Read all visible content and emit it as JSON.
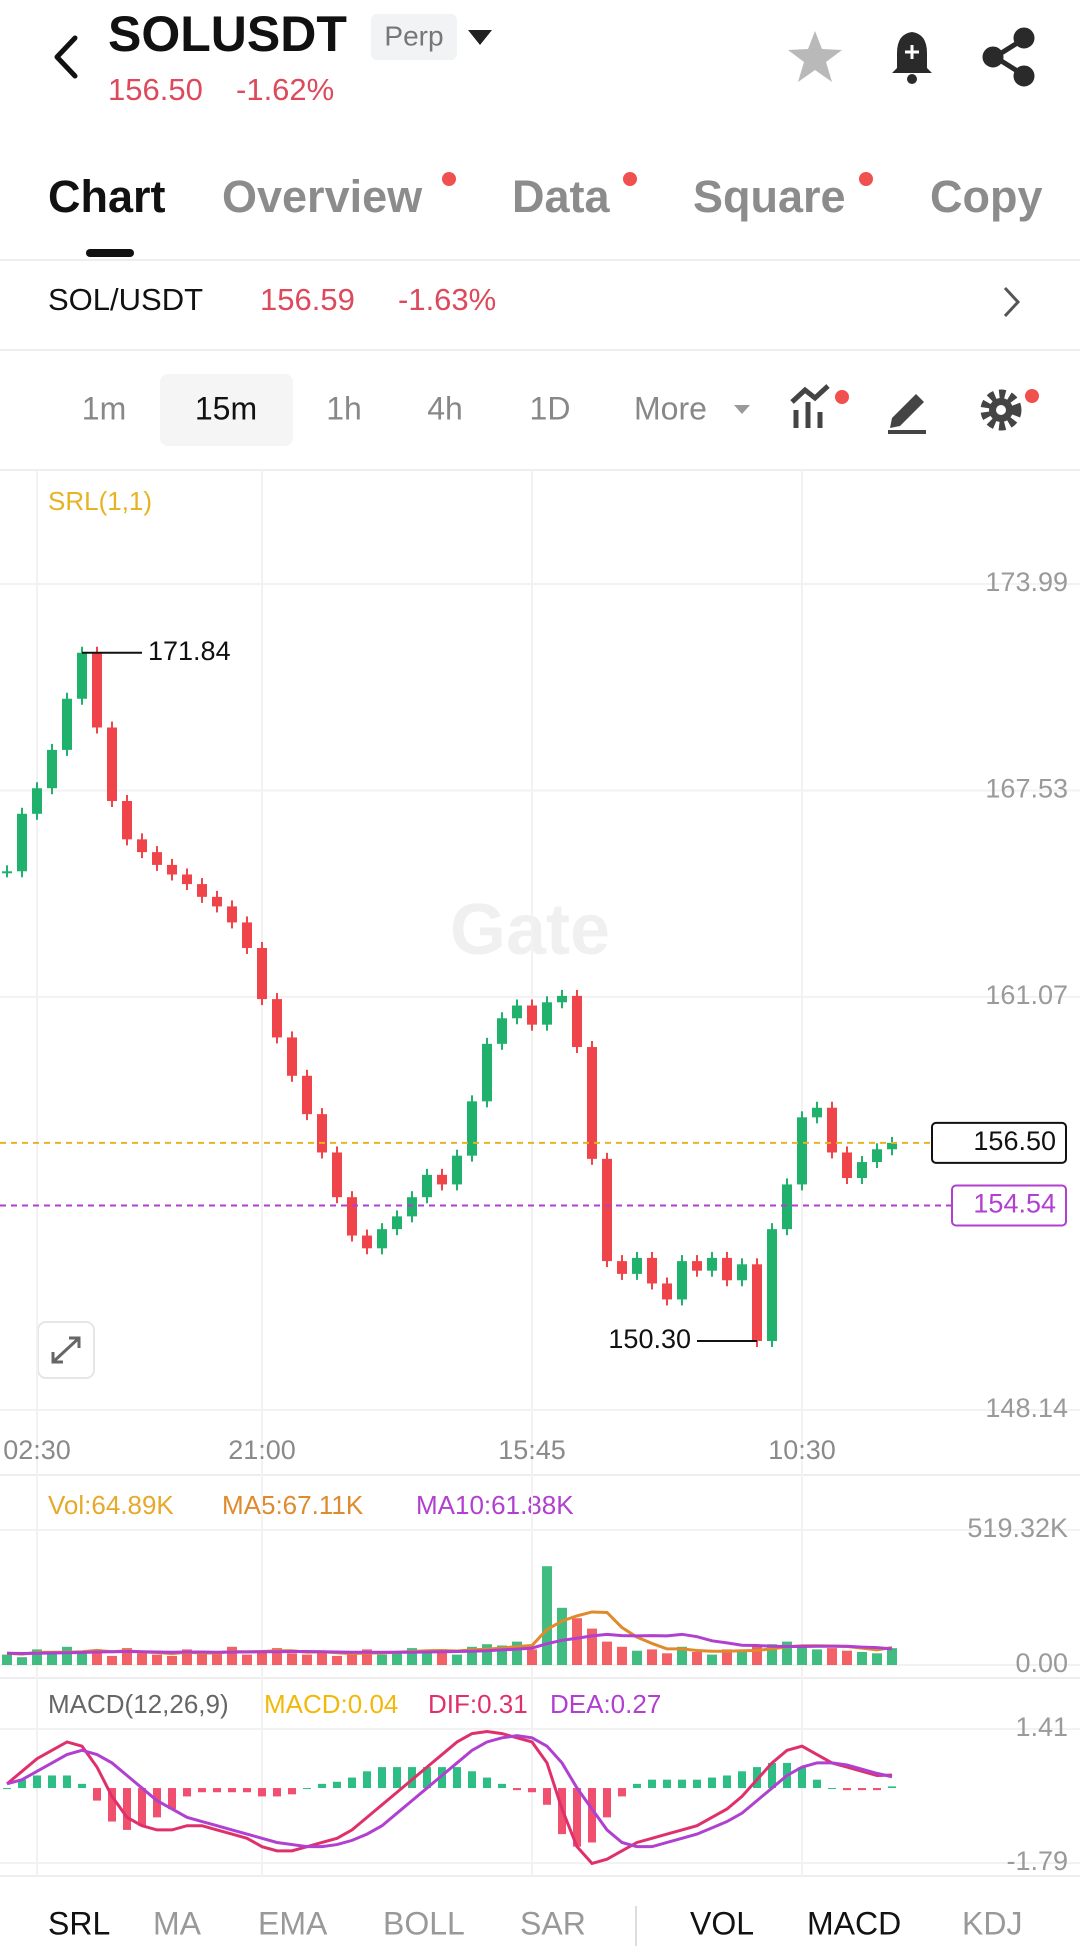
{
  "header": {
    "symbol": "SOLUSDT",
    "badge": "Perp",
    "price": "156.50",
    "change": "-1.62%"
  },
  "tabs": [
    "Chart",
    "Overview",
    "Data",
    "Square",
    "Copy"
  ],
  "pair": {
    "name": "SOL/USDT",
    "price": "156.59",
    "change": "-1.63%"
  },
  "intervals": [
    "1m",
    "15m",
    "1h",
    "4h",
    "1D",
    "More"
  ],
  "indicators": {
    "main": [
      "SRL",
      "MA",
      "EMA",
      "BOLL",
      "SAR"
    ],
    "sub": [
      "VOL",
      "MACD",
      "KDJ"
    ]
  },
  "chart_data": [
    {
      "type": "candlestick",
      "indicator": "SRL(1,1)",
      "watermark": "Gate",
      "categories": [
        null,
        null,
        "02:30",
        null,
        null,
        null,
        null,
        null,
        null,
        null,
        null,
        null,
        null,
        null,
        null,
        null,
        null,
        "21:00",
        null,
        null,
        null,
        null,
        null,
        null,
        null,
        null,
        null,
        null,
        null,
        null,
        null,
        null,
        null,
        null,
        null,
        "15:45",
        null,
        null,
        null,
        null,
        null,
        null,
        null,
        null,
        null,
        null,
        null,
        null,
        null,
        null,
        null,
        null,
        null,
        "10:30",
        null,
        null,
        null,
        null,
        null,
        null
      ],
      "closes": [
        165.0,
        166.8,
        167.6,
        168.8,
        170.4,
        171.84,
        169.5,
        167.2,
        166.0,
        165.6,
        165.2,
        164.9,
        164.6,
        164.2,
        163.9,
        163.4,
        162.6,
        161.0,
        159.8,
        158.6,
        157.4,
        156.2,
        154.8,
        153.6,
        153.2,
        153.8,
        154.2,
        154.8,
        155.5,
        155.2,
        156.1,
        157.8,
        159.6,
        160.4,
        160.8,
        160.2,
        160.9,
        161.1,
        159.5,
        156.0,
        152.8,
        152.4,
        152.9,
        152.1,
        151.6,
        152.8,
        152.5,
        152.9,
        152.2,
        152.7,
        150.3,
        153.8,
        155.2,
        157.3,
        157.6,
        156.2,
        155.4,
        155.9,
        156.3,
        156.5
      ],
      "color_up": "#20b26c",
      "color_down": "#ef454a",
      "ylim": [
        148.14,
        177.09
      ],
      "yticks": [
        173.99,
        167.53,
        161.07,
        148.14
      ],
      "grid": true,
      "last_price": {
        "value": 156.5,
        "label": "156.50"
      },
      "srl_level": 154.54,
      "annotations": [
        {
          "value": 171.84,
          "label": "171.84"
        },
        {
          "value": 150.3,
          "label": "150.30"
        }
      ]
    },
    {
      "type": "volume",
      "bars": {
        "name": "Vol:64.89K",
        "color": "#e6a92a",
        "values": [
          40,
          30,
          60,
          45,
          70,
          50,
          55,
          35,
          65,
          45,
          40,
          35,
          60,
          50,
          45,
          70,
          40,
          55,
          65,
          45,
          40,
          50,
          35,
          45,
          60,
          40,
          50,
          65,
          55,
          60,
          40,
          70,
          80,
          75,
          90,
          60,
          380,
          220,
          180,
          140,
          90,
          70,
          55,
          60,
          45,
          70,
          50,
          40,
          60,
          55,
          75,
          80,
          90,
          70,
          60,
          65,
          55,
          50,
          45,
          64.89
        ]
      },
      "series": [
        {
          "name": "MA5:67.11K",
          "color": "#e08a2e",
          "values": [
            45,
            42,
            48,
            49,
            49,
            51,
            56,
            51,
            55,
            50,
            48,
            44,
            49,
            46,
            46,
            52,
            51,
            52,
            55,
            55,
            49,
            51,
            47,
            44,
            46,
            46,
            49,
            52,
            55,
            56,
            54,
            58,
            61,
            65,
            71,
            75,
            137,
            169,
            189,
            204,
            202,
            144,
            107,
            83,
            62,
            62,
            56,
            53,
            53,
            55,
            56,
            62,
            70,
            74,
            74,
            73,
            71,
            65,
            58,
            67.11
          ]
        },
        {
          "name": "MA10:61.88K",
          "color": "#b13fd0",
          "values": [
            45,
            44,
            45,
            46,
            47,
            48,
            50,
            51,
            52,
            51,
            50,
            49,
            50,
            50,
            49,
            50,
            50,
            51,
            51,
            52,
            52,
            51,
            50,
            49,
            49,
            49,
            49,
            49,
            50,
            51,
            52,
            53,
            55,
            58,
            61,
            65,
            82,
            95,
            103,
            112,
            118,
            113,
            112,
            113,
            112,
            118,
            109,
            93,
            85,
            76,
            75,
            72,
            71,
            71,
            72,
            72,
            72,
            69,
            67,
            61.88
          ]
        }
      ],
      "ylim": [
        0,
        519.32
      ],
      "yticks": [
        {
          "value": 519.32,
          "label": "519.32K"
        },
        {
          "value": 0,
          "label": "0.00"
        }
      ]
    },
    {
      "type": "macd",
      "title": "MACD(12,26,9)",
      "histogram": {
        "name": "MACD:0.04",
        "color": "#f0b90b",
        "color_up": "#2ebd85",
        "color_down": "#f0506e",
        "values": [
          0,
          0.2,
          0.3,
          0.3,
          0.3,
          0.1,
          -0.3,
          -0.8,
          -1.0,
          -0.9,
          -0.7,
          -0.5,
          -0.2,
          -0.1,
          -0.1,
          -0.1,
          -0.1,
          -0.2,
          -0.2,
          -0.15,
          0,
          0.1,
          0.15,
          0.25,
          0.4,
          0.5,
          0.5,
          0.5,
          0.5,
          0.5,
          0.5,
          0.4,
          0.25,
          0.1,
          -0.05,
          -0.1,
          -0.4,
          -1.1,
          -1.4,
          -1.3,
          -0.7,
          -0.2,
          0.1,
          0.2,
          0.2,
          0.2,
          0.2,
          0.25,
          0.3,
          0.4,
          0.5,
          0.6,
          0.6,
          0.5,
          0.2,
          0,
          -0.05,
          -0.05,
          -0.05,
          0.04
        ]
      },
      "series": [
        {
          "name": "DIF:0.31",
          "color": "#e0306c",
          "values": [
            0.1,
            0.4,
            0.7,
            0.9,
            1.1,
            1.0,
            0.5,
            -0.2,
            -0.7,
            -0.9,
            -1.0,
            -1.0,
            -0.9,
            -0.9,
            -1.0,
            -1.1,
            -1.2,
            -1.4,
            -1.5,
            -1.5,
            -1.4,
            -1.3,
            -1.2,
            -1.0,
            -0.7,
            -0.4,
            -0.1,
            0.2,
            0.5,
            0.8,
            1.1,
            1.3,
            1.35,
            1.3,
            1.2,
            1.1,
            0.6,
            -0.5,
            -1.4,
            -1.8,
            -1.7,
            -1.5,
            -1.3,
            -1.2,
            -1.1,
            -1.0,
            -0.9,
            -0.7,
            -0.5,
            -0.2,
            0.2,
            0.6,
            0.9,
            1.0,
            0.8,
            0.6,
            0.5,
            0.4,
            0.3,
            0.31
          ]
        },
        {
          "name": "DEA:0.27",
          "color": "#b040d0",
          "values": [
            0.1,
            0.2,
            0.4,
            0.6,
            0.8,
            0.9,
            0.8,
            0.6,
            0.3,
            0.0,
            -0.3,
            -0.5,
            -0.7,
            -0.8,
            -0.9,
            -1.0,
            -1.1,
            -1.2,
            -1.3,
            -1.35,
            -1.4,
            -1.4,
            -1.35,
            -1.25,
            -1.1,
            -0.9,
            -0.6,
            -0.3,
            0.0,
            0.3,
            0.6,
            0.9,
            1.1,
            1.2,
            1.25,
            1.2,
            1.0,
            0.6,
            0.0,
            -0.5,
            -1.0,
            -1.3,
            -1.4,
            -1.4,
            -1.3,
            -1.2,
            -1.1,
            -0.95,
            -0.8,
            -0.6,
            -0.3,
            0.0,
            0.3,
            0.5,
            0.6,
            0.6,
            0.55,
            0.45,
            0.35,
            0.27
          ]
        }
      ],
      "ylim": [
        -1.79,
        1.41
      ],
      "yticks": [
        1.41,
        -1.79
      ]
    }
  ]
}
